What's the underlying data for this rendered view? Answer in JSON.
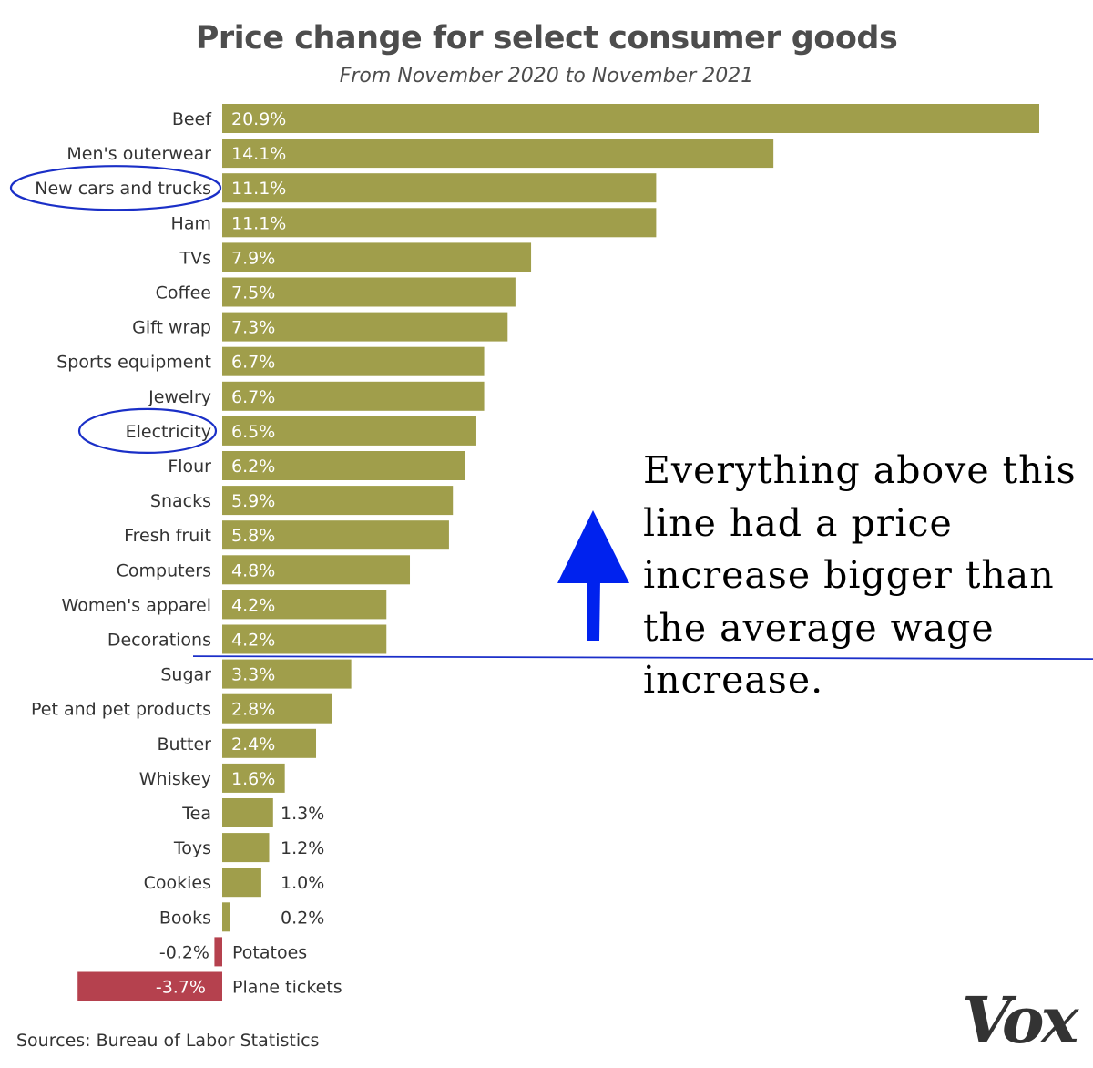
{
  "header": {
    "title": "Price change for select consumer goods",
    "subtitle": "From November 2020 to November 2021"
  },
  "annotation": {
    "text": "Everything above this line had a price increase bigger than the average wage increase.",
    "arrow_color": "#0022ee",
    "line_color": "#1b2fc9",
    "threshold_between": [
      "Decorations",
      "Sugar"
    ]
  },
  "highlighted_categories": [
    "New cars and trucks",
    "Electricity"
  ],
  "footer": {
    "source": "Sources: Bureau of Labor Statistics",
    "logo": "Vox"
  },
  "colors": {
    "positive_bar": "#a09e4b",
    "negative_bar": "#b5414e",
    "circle": "#1a2fc7"
  },
  "chart_data": {
    "type": "bar",
    "orientation": "horizontal",
    "title": "Price change for select consumer goods",
    "subtitle": "From November 2020 to November 2021",
    "xlabel": "",
    "ylabel": "",
    "xlim": [
      -3.7,
      20.9
    ],
    "grid": false,
    "categories": [
      "Beef",
      "Men's outerwear",
      "New cars and trucks",
      "Ham",
      "TVs",
      "Coffee",
      "Gift wrap",
      "Sports equipment",
      "Jewelry",
      "Electricity",
      "Flour",
      "Snacks",
      "Fresh fruit",
      "Computers",
      "Women's apparel",
      "Decorations",
      "Sugar",
      "Pet and pet products",
      "Butter",
      "Whiskey",
      "Tea",
      "Toys",
      "Cookies",
      "Books",
      "Potatoes",
      "Plane tickets"
    ],
    "values": [
      20.9,
      14.1,
      11.1,
      11.1,
      7.9,
      7.5,
      7.3,
      6.7,
      6.7,
      6.5,
      6.2,
      5.9,
      5.8,
      4.8,
      4.2,
      4.2,
      3.3,
      2.8,
      2.4,
      1.6,
      1.3,
      1.2,
      1.0,
      0.2,
      -0.2,
      -3.7
    ],
    "value_labels": [
      "20.9%",
      "14.1%",
      "11.1%",
      "11.1%",
      "7.9%",
      "7.5%",
      "7.3%",
      "6.7%",
      "6.7%",
      "6.5%",
      "6.2%",
      "5.9%",
      "5.8%",
      "4.8%",
      "4.2%",
      "4.2%",
      "3.3%",
      "2.8%",
      "2.4%",
      "1.6%",
      "1.3%",
      "1.2%",
      "1.0%",
      "0.2%",
      "-0.2%",
      "-3.7%"
    ]
  }
}
